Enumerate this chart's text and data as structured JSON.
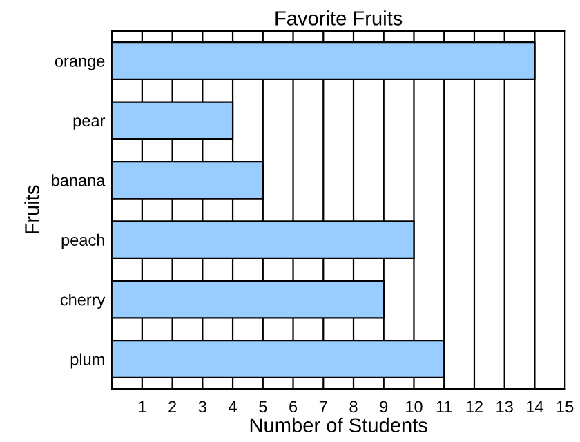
{
  "chart_data": {
    "type": "bar",
    "orientation": "horizontal",
    "title": "Favorite Fruits",
    "xlabel": "Number of Students",
    "ylabel": "Fruits",
    "categories": [
      "orange",
      "pear",
      "banana",
      "peach",
      "cherry",
      "plum"
    ],
    "series": [
      {
        "color": "#99ccff",
        "values": [
          14,
          4,
          5,
          10,
          9,
          11
        ]
      }
    ],
    "xlim": [
      0,
      15
    ],
    "xticks": [
      1,
      2,
      3,
      4,
      5,
      6,
      7,
      8,
      9,
      10,
      11,
      12,
      13,
      14,
      15
    ],
    "grid": "x",
    "legend": false
  }
}
